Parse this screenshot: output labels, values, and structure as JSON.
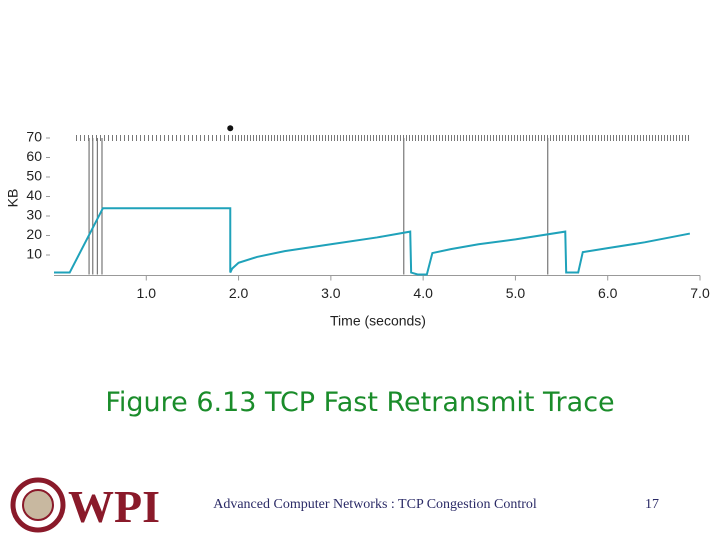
{
  "chart_data": {
    "type": "line",
    "ylabel": "KB",
    "xlabel": "Time (seconds)",
    "color": "#1fa2ba",
    "x": [
      0.0,
      0.17,
      0.53,
      1.91,
      1.91,
      1.93,
      2.0,
      2.2,
      2.5,
      3.0,
      3.5,
      3.86,
      3.87,
      3.94,
      4.04,
      4.1,
      4.3,
      4.6,
      5.0,
      5.54,
      5.55,
      5.68,
      5.73,
      6.0,
      6.4,
      6.89
    ],
    "values": [
      1,
      1,
      34,
      34,
      1,
      3,
      6,
      9,
      12,
      15.5,
      19,
      22,
      1,
      0,
      0,
      11,
      13,
      15.5,
      18,
      22,
      1,
      1,
      11.5,
      13.5,
      16.5,
      21
    ],
    "event_lines": [
      0.38,
      0.42,
      0.47,
      0.52,
      3.79,
      5.35
    ],
    "dot": {
      "x": 1.91,
      "y": 75
    },
    "xlim": [
      0,
      7.0
    ],
    "ylim": [
      0,
      70
    ],
    "xticks": [
      {
        "value": 1,
        "label": "1.0"
      },
      {
        "value": 2,
        "label": "2.0"
      },
      {
        "value": 3,
        "label": "3.0"
      },
      {
        "value": 4,
        "label": "4.0"
      },
      {
        "value": 5,
        "label": "5.0"
      },
      {
        "value": 6,
        "label": "6.0"
      },
      {
        "value": 7,
        "label": "7.0"
      }
    ],
    "yticks": [
      10,
      20,
      30,
      40,
      50,
      60,
      70
    ]
  },
  "slide": {
    "caption": "Figure 6.13 TCP Fast Retransmit Trace",
    "logo_text": "WPI",
    "footer": "Advanced Computer Networks : TCP Congestion Control",
    "page": "17"
  }
}
